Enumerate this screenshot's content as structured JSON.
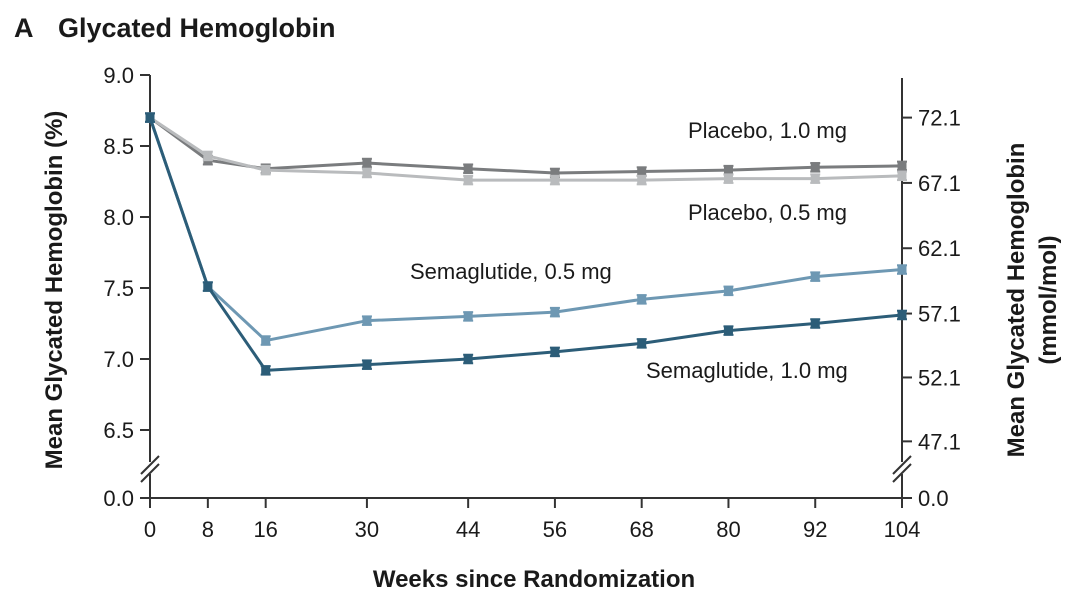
{
  "panel": {
    "letter": "A",
    "title": "Glycated Hemoglobin"
  },
  "chart_data": {
    "type": "line",
    "title": "Glycated Hemoglobin",
    "xlabel": "Weeks since Randomization",
    "ylabel": "Mean Glycated Hemoglobin (%)",
    "y2label_lines": [
      "Mean Glycated Hemoglobin",
      "(mmol/mol)"
    ],
    "x": [
      0,
      8,
      16,
      30,
      44,
      56,
      68,
      80,
      92,
      104
    ],
    "x_tick_labels": [
      "0",
      "8",
      "16",
      "30",
      "44",
      "56",
      "68",
      "80",
      "92",
      "104"
    ],
    "ylim": [
      6.3,
      9.0
    ],
    "y_broken_baseline": "0.0",
    "y_ticks": [
      9.0,
      8.5,
      8.0,
      7.5,
      7.0,
      6.5
    ],
    "y_tick_labels": [
      "9.0",
      "8.5",
      "8.0",
      "7.5",
      "7.0",
      "6.5"
    ],
    "y2_ticks_percent": [
      8.7,
      8.24,
      7.78,
      7.32,
      6.87,
      6.42
    ],
    "y2_tick_labels": [
      "72.1",
      "67.1",
      "62.1",
      "57.1",
      "52.1",
      "47.1"
    ],
    "y2_broken_baseline": "0.0",
    "series": [
      {
        "name": "Placebo, 1.0 mg",
        "color": "#7a7c7e",
        "values": [
          8.7,
          8.4,
          8.34,
          8.38,
          8.34,
          8.31,
          8.32,
          8.33,
          8.35,
          8.36
        ]
      },
      {
        "name": "Placebo, 0.5 mg",
        "color": "#b9bbbd",
        "values": [
          8.7,
          8.43,
          8.33,
          8.31,
          8.26,
          8.26,
          8.26,
          8.27,
          8.27,
          8.29
        ]
      },
      {
        "name": "Semaglutide, 0.5 mg",
        "color": "#6e98b3",
        "values": [
          8.7,
          7.51,
          7.13,
          7.27,
          7.3,
          7.33,
          7.42,
          7.48,
          7.58,
          7.63
        ]
      },
      {
        "name": "Semaglutide, 1.0 mg",
        "color": "#2c5d78",
        "values": [
          8.7,
          7.51,
          6.92,
          6.96,
          7.0,
          7.05,
          7.11,
          7.2,
          7.25,
          7.31
        ]
      }
    ]
  }
}
